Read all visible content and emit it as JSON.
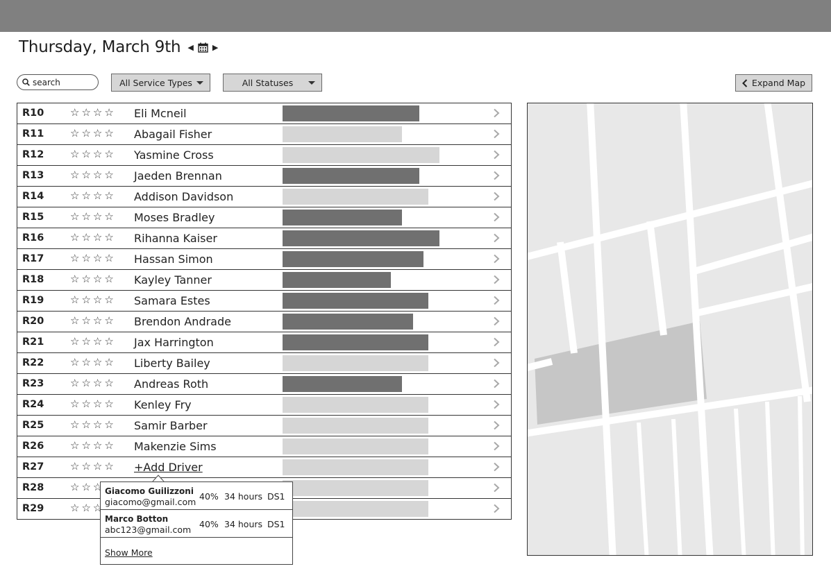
{
  "header": {
    "date_title": "Thursday, March 9th",
    "prev_icon": "caret-left-icon",
    "calendar_icon": "calendar-icon",
    "next_icon": "caret-right-icon"
  },
  "filters": {
    "search_placeholder": "search",
    "service_types": "All Service Types",
    "statuses": "All Statuses",
    "expand_map": "Expand Map"
  },
  "colors": {
    "bar_dark": "#707070",
    "bar_light": "#d6d6d6",
    "map_bg": "#e8e8e8",
    "map_road": "#ffffff",
    "map_area": "#c6c6c6"
  },
  "routes": [
    {
      "id": "R10",
      "driver": "Eli Mcneil",
      "progress": 0.87,
      "dark": true
    },
    {
      "id": "R11",
      "driver": "Abagail Fisher",
      "progress": 0.76,
      "dark": false
    },
    {
      "id": "R12",
      "driver": "Yasmine Cross",
      "progress": 1.0,
      "dark": false
    },
    {
      "id": "R13",
      "driver": "Jaeden Brennan",
      "progress": 0.87,
      "dark": true
    },
    {
      "id": "R14",
      "driver": "Addison Davidson",
      "progress": 0.93,
      "dark": false
    },
    {
      "id": "R15",
      "driver": "Moses Bradley",
      "progress": 0.76,
      "dark": true
    },
    {
      "id": "R16",
      "driver": "Rihanna Kaiser",
      "progress": 1.0,
      "dark": true
    },
    {
      "id": "R17",
      "driver": "Hassan Simon",
      "progress": 0.9,
      "dark": true
    },
    {
      "id": "R18",
      "driver": "Kayley Tanner",
      "progress": 0.69,
      "dark": true
    },
    {
      "id": "R19",
      "driver": "Samara Estes",
      "progress": 0.93,
      "dark": true
    },
    {
      "id": "R20",
      "driver": "Brendon Andrade",
      "progress": 0.83,
      "dark": true
    },
    {
      "id": "R21",
      "driver": "Jax Harrington",
      "progress": 0.93,
      "dark": true
    },
    {
      "id": "R22",
      "driver": "Liberty Bailey",
      "progress": 0.93,
      "dark": false
    },
    {
      "id": "R23",
      "driver": "Andreas Roth",
      "progress": 0.76,
      "dark": true
    },
    {
      "id": "R24",
      "driver": "Kenley Fry",
      "progress": 0.93,
      "dark": false
    },
    {
      "id": "R25",
      "driver": "Samir Barber",
      "progress": 0.93,
      "dark": false
    },
    {
      "id": "R26",
      "driver": "Makenzie Sims",
      "progress": 0.93,
      "dark": false
    },
    {
      "id": "R27",
      "driver": "+Add Driver",
      "progress": 0.93,
      "dark": false,
      "add": true
    },
    {
      "id": "R28",
      "driver": "",
      "progress": 0.93,
      "dark": false
    },
    {
      "id": "R29",
      "driver": "",
      "progress": 0.93,
      "dark": false
    }
  ],
  "rating_icon": "star-outline-icon",
  "row_action_icon": "chevron-right-icon",
  "popover": {
    "candidates": [
      {
        "name": "Giacomo Guilizzoni",
        "email": "giacomo@gmail.com",
        "percent": "40%",
        "hours": "34 hours",
        "tag": "DS1"
      },
      {
        "name": "Marco Botton",
        "email": "abc123@gmail.com",
        "percent": "40%",
        "hours": "34 hours",
        "tag": "DS1"
      }
    ],
    "show_more": "Show More"
  }
}
